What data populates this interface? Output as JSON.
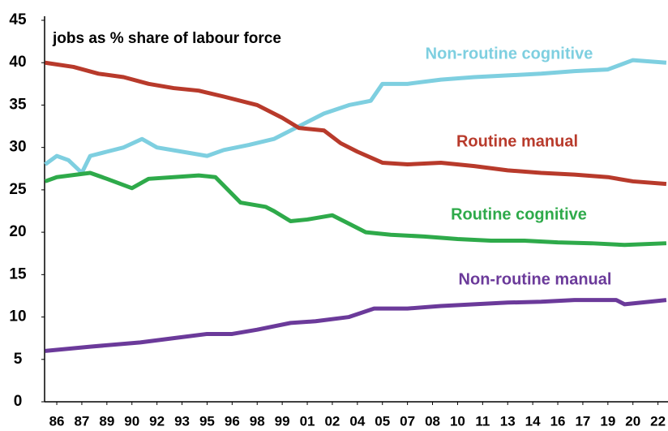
{
  "chart_data": {
    "type": "line",
    "annotations": [
      "jobs as % share of labour force"
    ],
    "xlim": [
      1985.27,
      2022.6
    ],
    "xticks": [
      {
        "value": 1986,
        "label": "86"
      },
      {
        "value": 1987.5,
        "label": "87"
      },
      {
        "value": 1989,
        "label": "89"
      },
      {
        "value": 1990.5,
        "label": "90"
      },
      {
        "value": 1992,
        "label": "92"
      },
      {
        "value": 1993.5,
        "label": "93"
      },
      {
        "value": 1995,
        "label": "95"
      },
      {
        "value": 1996.5,
        "label": "96"
      },
      {
        "value": 1998,
        "label": "98"
      },
      {
        "value": 1999.5,
        "label": "99"
      },
      {
        "value": 2001,
        "label": "01"
      },
      {
        "value": 2002.5,
        "label": "02"
      },
      {
        "value": 2004,
        "label": "04"
      },
      {
        "value": 2005.5,
        "label": "05"
      },
      {
        "value": 2007,
        "label": "07"
      },
      {
        "value": 2008.5,
        "label": "08"
      },
      {
        "value": 2010,
        "label": "10"
      },
      {
        "value": 2011.5,
        "label": "11"
      },
      {
        "value": 2013,
        "label": "13"
      },
      {
        "value": 2014.5,
        "label": "14"
      },
      {
        "value": 2016,
        "label": "16"
      },
      {
        "value": 2017.5,
        "label": "17"
      },
      {
        "value": 2019,
        "label": "19"
      },
      {
        "value": 2020.5,
        "label": "20"
      },
      {
        "value": 2022,
        "label": "22"
      }
    ],
    "ylim": [
      0,
      45
    ],
    "yticks": [
      0,
      5,
      10,
      15,
      20,
      25,
      30,
      35,
      40,
      45
    ],
    "grid": false,
    "series": [
      {
        "name": "Non-routine cognitive",
        "color": "#7ecfe0",
        "x": [
          1985.3,
          1986,
          1986.7,
          1987.5,
          1988,
          1989,
          1990,
          1991.1,
          1992,
          1993.5,
          1995,
          1996,
          1997.5,
          1999,
          2000.5,
          2002,
          2003.5,
          2004.8,
          2005.5,
          2007,
          2009,
          2011,
          2013,
          2015,
          2017,
          2019,
          2020.5,
          2022.5
        ],
        "values": [
          28,
          29,
          28.5,
          27,
          29,
          29.5,
          30,
          31,
          30,
          29.5,
          29,
          29.7,
          30.3,
          31,
          32.5,
          34,
          35,
          35.5,
          37.5,
          37.5,
          38,
          38.3,
          38.5,
          38.7,
          39,
          39.2,
          40.3,
          40
        ]
      },
      {
        "name": "Routine manual",
        "color": "#b83a2b",
        "x": [
          1985.3,
          1987,
          1988.5,
          1990,
          1991.5,
          1993,
          1994.5,
          1996,
          1998,
          1999.5,
          2000.5,
          2002,
          2003,
          2004,
          2005.5,
          2007,
          2009,
          2011,
          2013,
          2015,
          2017,
          2019,
          2020.5,
          2022.5
        ],
        "values": [
          40,
          39.5,
          38.7,
          38.3,
          37.5,
          37,
          36.7,
          36,
          35,
          33.5,
          32.3,
          32,
          30.5,
          29.5,
          28.2,
          28,
          28.2,
          27.8,
          27.3,
          27,
          26.8,
          26.5,
          26,
          25.7
        ]
      },
      {
        "name": "Routine cognitive",
        "color": "#2eaa4a",
        "x": [
          1985.3,
          1986,
          1988,
          1989,
          1990.5,
          1991.5,
          1993,
          1994.5,
          1995.5,
          1996,
          1997,
          1998.5,
          1999,
          2000,
          2001,
          2002.5,
          2003.5,
          2004.5,
          2006,
          2008,
          2010,
          2012,
          2014,
          2016,
          2018,
          2020,
          2022.5
        ],
        "values": [
          26,
          26.5,
          27,
          26.3,
          25.2,
          26.3,
          26.5,
          26.7,
          26.5,
          25.5,
          23.5,
          23,
          22.5,
          21.3,
          21.5,
          22,
          21,
          20,
          19.7,
          19.5,
          19.2,
          19,
          19,
          18.8,
          18.7,
          18.5,
          18.7
        ]
      },
      {
        "name": "Non-routine manual",
        "color": "#6b3a9a",
        "x": [
          1985.3,
          1988,
          1991,
          1993,
          1995,
          1996.5,
          1998,
          2000,
          2001.5,
          2003.5,
          2005,
          2007,
          2009,
          2011,
          2013,
          2015,
          2017,
          2019.5,
          2020,
          2022.5
        ],
        "values": [
          6,
          6.5,
          7,
          7.5,
          8,
          8,
          8.5,
          9.3,
          9.5,
          10,
          11,
          11,
          11.3,
          11.5,
          11.7,
          11.8,
          12,
          12,
          11.5,
          12
        ]
      }
    ]
  }
}
